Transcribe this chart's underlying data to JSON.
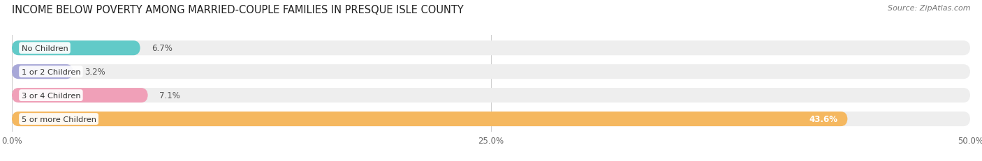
{
  "title": "INCOME BELOW POVERTY AMONG MARRIED-COUPLE FAMILIES IN PRESQUE ISLE COUNTY",
  "source": "Source: ZipAtlas.com",
  "categories": [
    "No Children",
    "1 or 2 Children",
    "3 or 4 Children",
    "5 or more Children"
  ],
  "values": [
    6.7,
    3.2,
    7.1,
    43.6
  ],
  "bar_colors": [
    "#62cac8",
    "#a8a8d8",
    "#f0a0b8",
    "#f5b860"
  ],
  "xlim": [
    0,
    50
  ],
  "xticks": [
    0.0,
    25.0,
    50.0
  ],
  "xtick_labels": [
    "0.0%",
    "25.0%",
    "50.0%"
  ],
  "background_color": "#ffffff",
  "bar_bg_color": "#eeeeee",
  "title_fontsize": 10.5,
  "source_fontsize": 8,
  "bar_height": 0.62,
  "bar_gap": 1.0,
  "figsize": [
    14.06,
    2.32
  ],
  "dpi": 100
}
